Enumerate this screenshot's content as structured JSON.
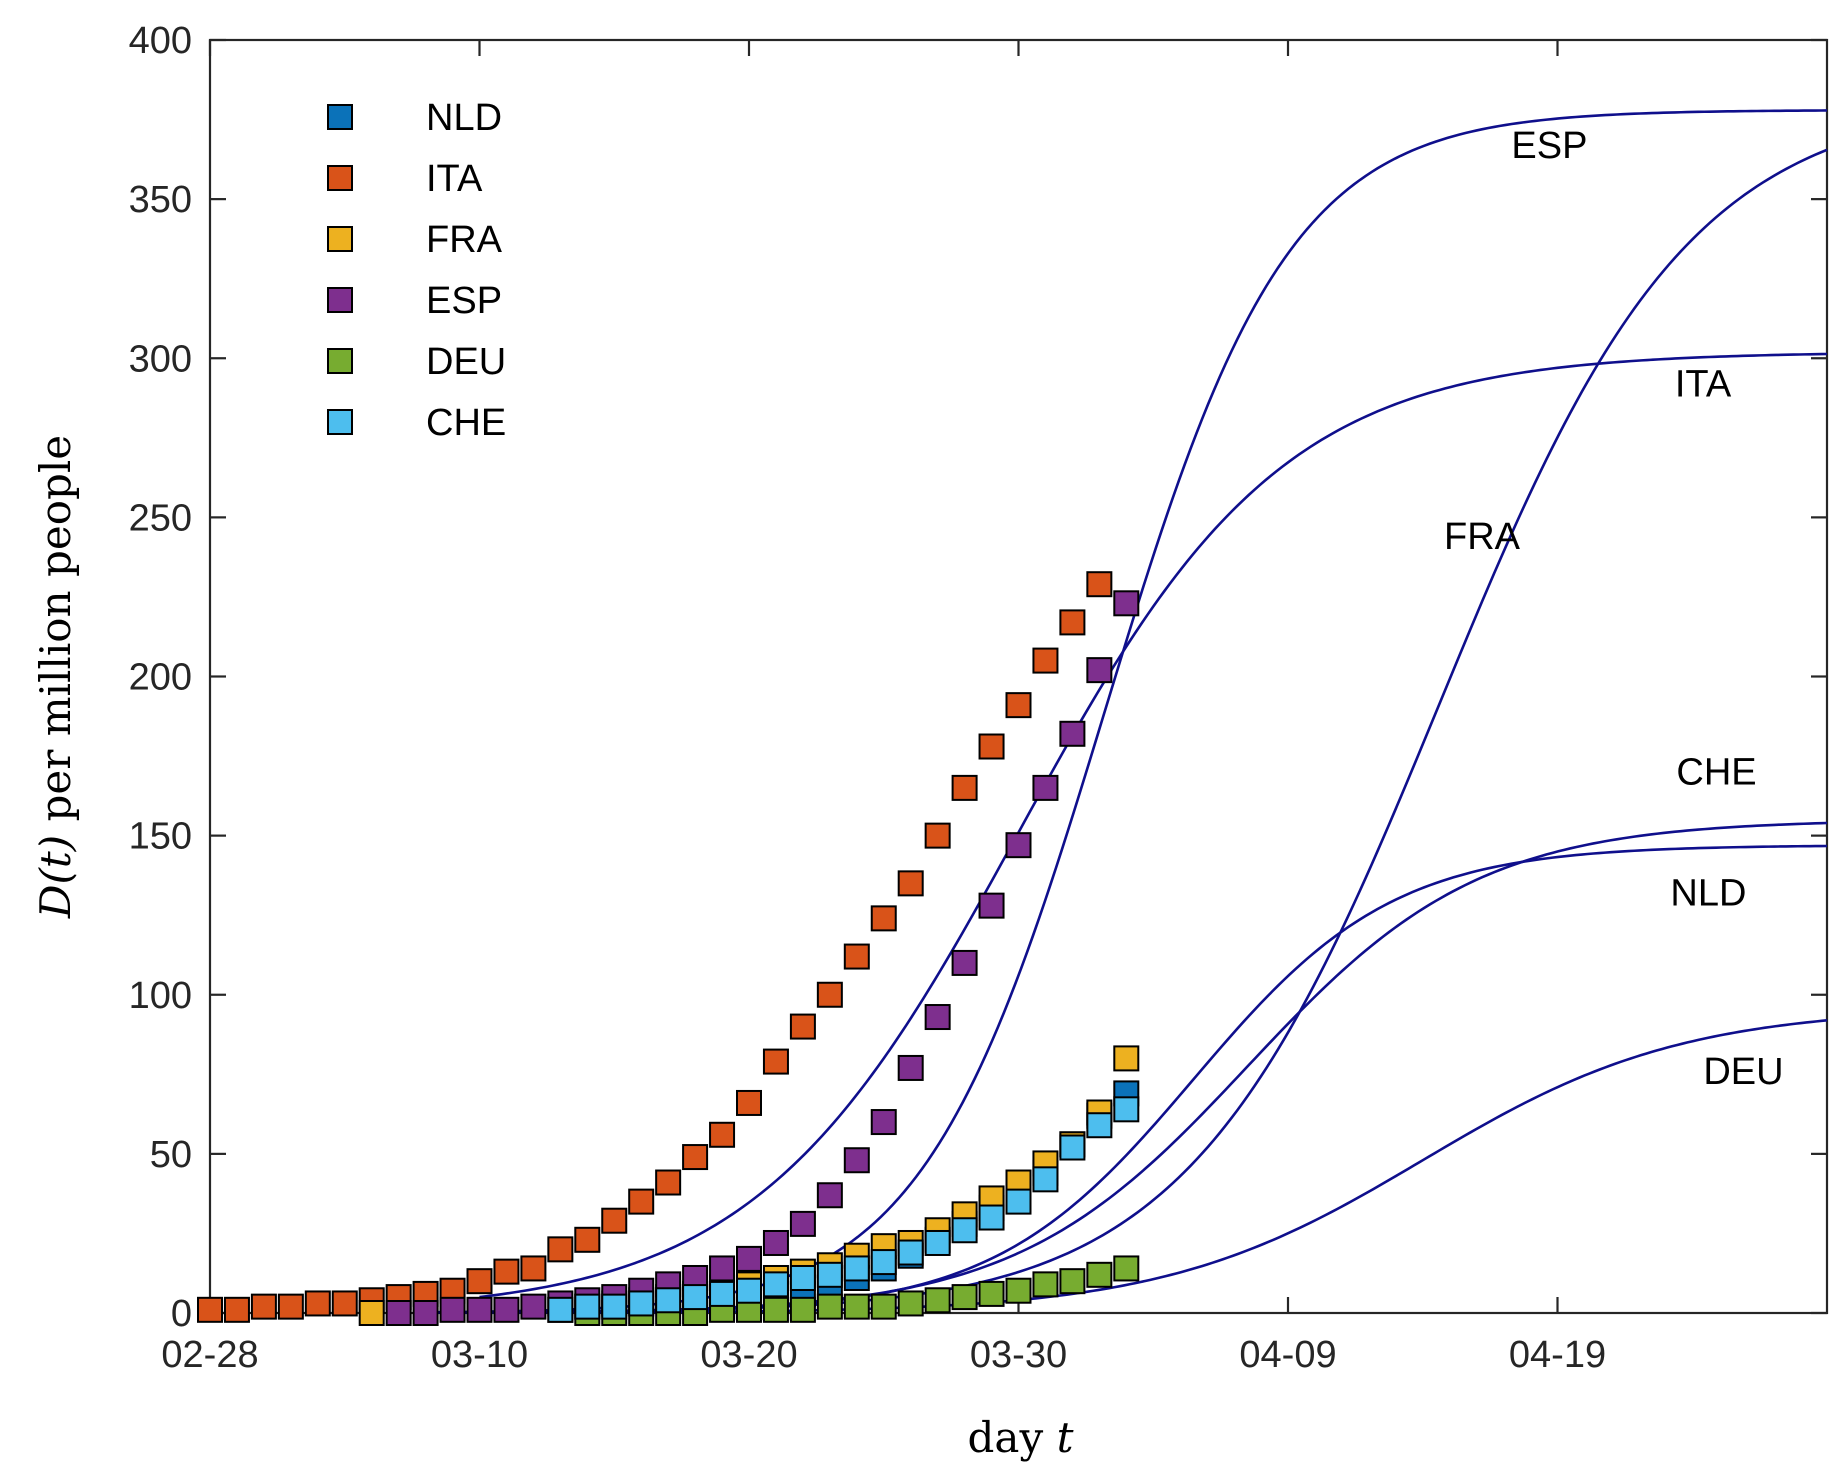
{
  "chart_data": {
    "type": "scatter",
    "title": "",
    "xlabel": "day",
    "xlabel_var": "t",
    "ylabel_func": "D(t)",
    "ylabel_rest": "per million people",
    "xlim": [
      0,
      60
    ],
    "ylim": [
      0,
      400
    ],
    "x_ticks": [
      {
        "day": 0,
        "label": "02-28"
      },
      {
        "day": 10,
        "label": "03-10"
      },
      {
        "day": 20,
        "label": "03-20"
      },
      {
        "day": 30,
        "label": "03-30"
      },
      {
        "day": 40,
        "label": "04-09"
      },
      {
        "day": 50,
        "label": "04-19"
      }
    ],
    "y_ticks": [
      0,
      50,
      100,
      150,
      200,
      250,
      300,
      350,
      400
    ],
    "legend_position": "top-left",
    "fit_color": "#0f0f8c",
    "series": [
      {
        "name": "NLD",
        "color": "#0b72b9",
        "points": [
          [
            19,
            2
          ],
          [
            20,
            3
          ],
          [
            21,
            4
          ],
          [
            22,
            6
          ],
          [
            23,
            8
          ],
          [
            24,
            11
          ],
          [
            25,
            14
          ],
          [
            26,
            18
          ],
          [
            27,
            23
          ],
          [
            28,
            28
          ],
          [
            29,
            33
          ],
          [
            30,
            38
          ],
          [
            31,
            44
          ],
          [
            32,
            53
          ],
          [
            33,
            62
          ],
          [
            34,
            69
          ]
        ],
        "fit": {
          "K": 147,
          "center": 36.5,
          "width": 3.7,
          "start": 8,
          "end": 60
        },
        "fit_label": "NLD"
      },
      {
        "name": "ITA",
        "color": "#d95319",
        "points": [
          [
            0,
            1
          ],
          [
            1,
            1
          ],
          [
            2,
            2
          ],
          [
            3,
            2
          ],
          [
            4,
            3
          ],
          [
            5,
            3
          ],
          [
            6,
            4
          ],
          [
            7,
            5
          ],
          [
            8,
            6
          ],
          [
            9,
            7
          ],
          [
            10,
            10
          ],
          [
            11,
            13
          ],
          [
            12,
            14
          ],
          [
            13,
            20
          ],
          [
            14,
            23
          ],
          [
            15,
            29
          ],
          [
            16,
            35
          ],
          [
            17,
            41
          ],
          [
            18,
            49
          ],
          [
            19,
            56
          ],
          [
            20,
            66
          ],
          [
            21,
            79
          ],
          [
            22,
            90
          ],
          [
            23,
            100
          ],
          [
            24,
            112
          ],
          [
            25,
            124
          ],
          [
            26,
            135
          ],
          [
            27,
            150
          ],
          [
            28,
            165
          ],
          [
            29,
            178
          ],
          [
            30,
            191
          ],
          [
            31,
            205
          ],
          [
            32,
            217
          ],
          [
            33,
            229
          ]
        ],
        "fit": {
          "K": 302,
          "center": 30.0,
          "width": 4.9,
          "start": 10,
          "end": 60
        },
        "fit_label": "ITA"
      },
      {
        "name": "FRA",
        "color": "#edb120",
        "points": [
          [
            6,
            0
          ],
          [
            13,
            1
          ],
          [
            14,
            2
          ],
          [
            15,
            3
          ],
          [
            16,
            4
          ],
          [
            17,
            5
          ],
          [
            18,
            6
          ],
          [
            19,
            8
          ],
          [
            20,
            9
          ],
          [
            21,
            11
          ],
          [
            22,
            13
          ],
          [
            23,
            15
          ],
          [
            24,
            18
          ],
          [
            25,
            21
          ],
          [
            26,
            22
          ],
          [
            27,
            26
          ],
          [
            28,
            31
          ],
          [
            29,
            36
          ],
          [
            30,
            41
          ],
          [
            31,
            47
          ],
          [
            32,
            53
          ],
          [
            33,
            63
          ],
          [
            34,
            80
          ]
        ],
        "fit": {
          "K": 382,
          "center": 45.6,
          "width": 4.65,
          "start": 8,
          "end": 60
        },
        "fit_label": "FRA"
      },
      {
        "name": "ESP",
        "color": "#7e2f8e",
        "points": [
          [
            7,
            0
          ],
          [
            8,
            0
          ],
          [
            9,
            1
          ],
          [
            10,
            1
          ],
          [
            11,
            1
          ],
          [
            12,
            2
          ],
          [
            13,
            3
          ],
          [
            14,
            4
          ],
          [
            15,
            5
          ],
          [
            16,
            7
          ],
          [
            17,
            9
          ],
          [
            18,
            11
          ],
          [
            19,
            14
          ],
          [
            20,
            17
          ],
          [
            21,
            22
          ],
          [
            22,
            28
          ],
          [
            23,
            37
          ],
          [
            24,
            48
          ],
          [
            25,
            60
          ],
          [
            26,
            77
          ],
          [
            27,
            93
          ],
          [
            28,
            110
          ],
          [
            29,
            128
          ],
          [
            30,
            147
          ],
          [
            31,
            165
          ],
          [
            32,
            182
          ],
          [
            33,
            202
          ],
          [
            34,
            223
          ]
        ],
        "fit": {
          "K": 378,
          "center": 33.2,
          "width": 3.4,
          "start": 8,
          "end": 60
        },
        "fit_label": "ESP"
      },
      {
        "name": "DEU",
        "color": "#77ac30",
        "points": [
          [
            14,
            0
          ],
          [
            15,
            0
          ],
          [
            16,
            0
          ],
          [
            17,
            0
          ],
          [
            18,
            0
          ],
          [
            19,
            1
          ],
          [
            20,
            1
          ],
          [
            21,
            1
          ],
          [
            22,
            1
          ],
          [
            23,
            2
          ],
          [
            24,
            2
          ],
          [
            25,
            2
          ],
          [
            26,
            3
          ],
          [
            27,
            4
          ],
          [
            28,
            5
          ],
          [
            29,
            6
          ],
          [
            30,
            7
          ],
          [
            31,
            9
          ],
          [
            32,
            10
          ],
          [
            33,
            12
          ],
          [
            34,
            14
          ]
        ],
        "fit": {
          "K": 96,
          "center": 45.0,
          "width": 4.8,
          "start": 14,
          "end": 60
        },
        "fit_label": "DEU"
      },
      {
        "name": "CHE",
        "color": "#4dbeee",
        "points": [
          [
            13,
            1
          ],
          [
            14,
            2
          ],
          [
            15,
            2
          ],
          [
            16,
            3
          ],
          [
            17,
            4
          ],
          [
            18,
            5
          ],
          [
            19,
            6
          ],
          [
            20,
            7
          ],
          [
            21,
            9
          ],
          [
            22,
            11
          ],
          [
            23,
            12
          ],
          [
            24,
            14
          ],
          [
            25,
            16
          ],
          [
            26,
            19
          ],
          [
            27,
            22
          ],
          [
            28,
            26
          ],
          [
            29,
            30
          ],
          [
            30,
            35
          ],
          [
            31,
            42
          ],
          [
            32,
            52
          ],
          [
            33,
            59
          ],
          [
            34,
            64
          ]
        ],
        "fit": {
          "K": 155,
          "center": 38.5,
          "width": 4.3,
          "start": 8,
          "end": 60
        },
        "fit_label": "CHE"
      }
    ]
  }
}
